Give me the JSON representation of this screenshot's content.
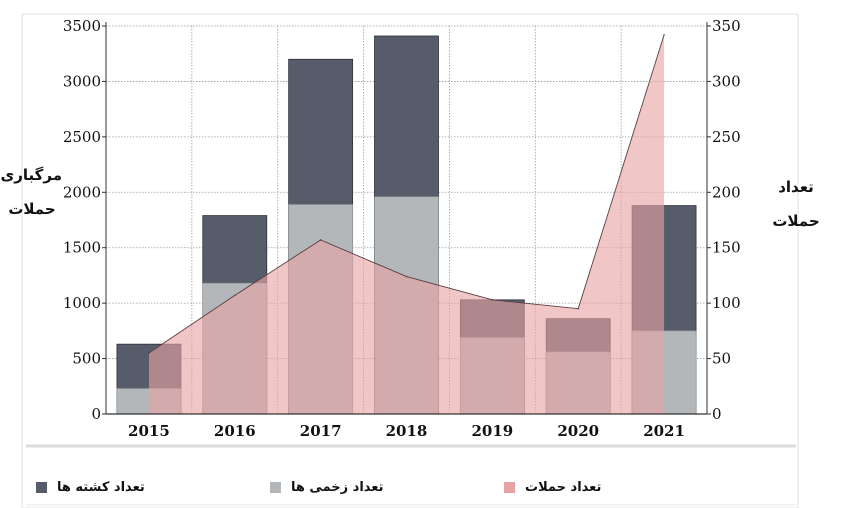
{
  "chart_data": {
    "type": "bar",
    "categories": [
      "2015",
      "2016",
      "2017",
      "2018",
      "2019",
      "2020",
      "2021"
    ],
    "series": [
      {
        "name": "تعداد کشته ها",
        "kind": "bar",
        "axis": "left",
        "color": "#565c6a",
        "values": [
          630,
          1790,
          3200,
          3410,
          1030,
          860,
          1880
        ]
      },
      {
        "name": "تعداد زخمی ها",
        "kind": "bar",
        "axis": "left",
        "color": "#b4b7b9",
        "values": [
          230,
          1180,
          1890,
          1960,
          690,
          560,
          750
        ]
      },
      {
        "name": "تعداد حملات",
        "kind": "area",
        "axis": "right",
        "color": "#e7a3a4",
        "values": [
          55,
          107,
          157,
          124,
          103,
          95,
          342
        ]
      }
    ],
    "ylabel_left": "مرگباری\nحملات",
    "ylabel_right": "تعداد\nحملات",
    "ylim_left": [
      0,
      3500
    ],
    "ylim_right": [
      0,
      350
    ],
    "yticks_left": [
      0,
      500,
      1000,
      1500,
      2000,
      2500,
      3000,
      3500
    ],
    "yticks_right": [
      0,
      50,
      100,
      150,
      200,
      250,
      300,
      350
    ],
    "grid": true,
    "legend_position": "bottom"
  }
}
